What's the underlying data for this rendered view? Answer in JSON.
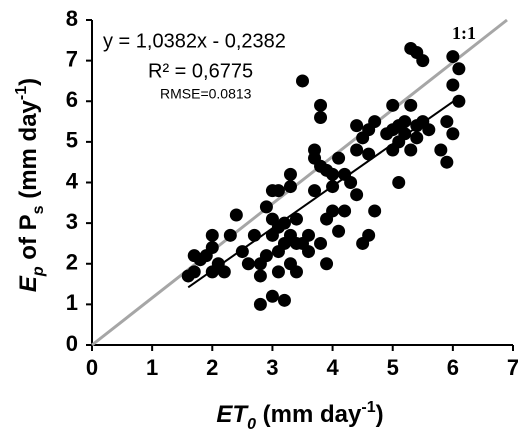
{
  "chart_data": {
    "type": "scatter",
    "xlabel_parts": [
      "ET",
      "0",
      " (mm day",
      "-1",
      ")"
    ],
    "ylabel_parts": [
      "E",
      "p",
      " of P",
      "s",
      " (mm day",
      "-1",
      ")"
    ],
    "annotations": [
      "y = 1,0382x - 0,2382",
      "R² = 0,6775",
      "RMSE=0.0813"
    ],
    "xlim": [
      0,
      7
    ],
    "ylim": [
      0,
      8
    ],
    "xticks": [
      0,
      1,
      2,
      3,
      4,
      5,
      6,
      7
    ],
    "yticks": [
      0,
      1,
      2,
      3,
      4,
      5,
      6,
      7,
      8
    ],
    "color": "#000000",
    "reference_line": {
      "label": "1:1",
      "color": "#a6a6a6",
      "x": [
        0,
        6.9
      ],
      "y": [
        0,
        8
      ]
    },
    "trendline": {
      "color": "#000000",
      "x": [
        1.6,
        6.1
      ],
      "y": [
        1.42,
        6.09
      ]
    },
    "x": [
      1.6,
      1.7,
      1.7,
      1.8,
      1.9,
      2.0,
      2.0,
      2.0,
      2.1,
      2.1,
      2.2,
      2.3,
      2.4,
      2.5,
      2.6,
      2.7,
      2.8,
      2.8,
      2.8,
      2.9,
      2.9,
      3.0,
      3.0,
      3.0,
      3.0,
      3.1,
      3.1,
      3.1,
      3.1,
      3.2,
      3.2,
      3.2,
      3.3,
      3.3,
      3.3,
      3.3,
      3.4,
      3.4,
      3.4,
      3.5,
      3.5,
      3.6,
      3.6,
      3.7,
      3.7,
      3.7,
      3.8,
      3.8,
      3.8,
      3.8,
      3.9,
      3.9,
      3.9,
      4.0,
      4.0,
      4.0,
      4.1,
      4.1,
      4.2,
      4.2,
      4.3,
      4.4,
      4.4,
      4.4,
      4.5,
      4.5,
      4.6,
      4.6,
      4.6,
      4.7,
      4.7,
      4.9,
      5.0,
      5.0,
      5.0,
      5.1,
      5.1,
      5.1,
      5.2,
      5.2,
      5.3,
      5.3,
      5.3,
      5.4,
      5.4,
      5.4,
      5.5,
      5.5,
      5.6,
      5.8,
      5.9,
      5.9,
      6.0,
      6.0,
      6.1,
      6.1,
      6.0
    ],
    "values": [
      1.7,
      1.8,
      2.2,
      2.1,
      2.2,
      1.8,
      2.4,
      2.7,
      1.9,
      2.0,
      1.8,
      2.7,
      3.2,
      2.3,
      2.0,
      2.7,
      1.0,
      1.7,
      2.0,
      3.4,
      2.2,
      1.2,
      2.7,
      3.1,
      3.8,
      1.8,
      2.3,
      2.9,
      3.8,
      1.1,
      2.5,
      3.0,
      2.0,
      2.7,
      3.9,
      4.2,
      1.8,
      2.5,
      3.1,
      2.5,
      6.5,
      2.7,
      2.3,
      3.8,
      4.6,
      4.8,
      2.5,
      5.6,
      5.9,
      4.4,
      2.0,
      3.1,
      4.3,
      3.3,
      3.9,
      4.2,
      2.8,
      4.6,
      3.3,
      4.2,
      4.0,
      4.8,
      5.4,
      3.7,
      2.5,
      5.1,
      2.7,
      4.7,
      5.3,
      3.3,
      5.5,
      5.2,
      5.9,
      4.8,
      5.3,
      5.4,
      5.0,
      4.0,
      5.5,
      5.2,
      4.8,
      5.9,
      7.3,
      7.2,
      5.1,
      5.4,
      7.0,
      5.5,
      5.3,
      4.8,
      4.5,
      5.5,
      7.1,
      6.4,
      6.8,
      6.0,
      5.2
    ]
  }
}
